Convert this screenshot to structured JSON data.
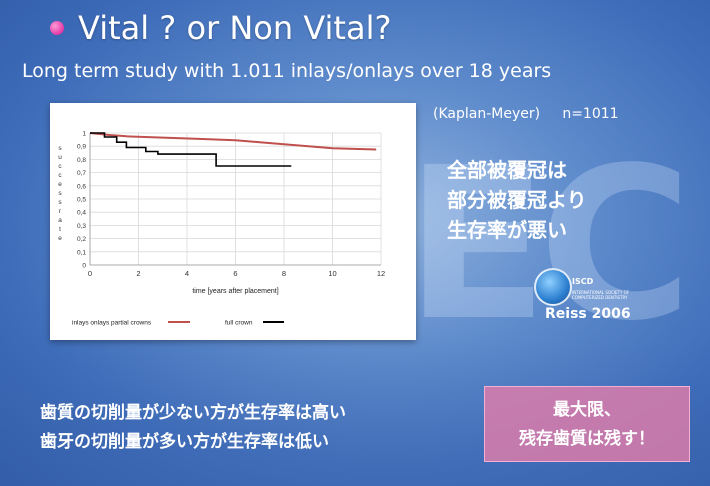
{
  "slide": {
    "title": "Vital ? or Non Vital?",
    "subtitle": "Long term study with 1.011 inlays/onlays over 18 years",
    "method": "(Kaplan-Meyer)     n=1011",
    "finding_lines": [
      "全部被覆冠は",
      "部分被覆冠より",
      "生存率が悪い"
    ],
    "logo": {
      "text": "ISCD",
      "subtitle": "INTERNATIONAL SOCIETY OF COMPUTERIZED DENTISTRY"
    },
    "citation": "Reiss 2006",
    "notes": [
      "歯質の切削量が少ない方が生存率は高い",
      "歯牙の切削量が多い方が生存率は低い"
    ],
    "callout": [
      "最大限、",
      "残存歯質は残す！"
    ]
  },
  "colors": {
    "partial": "#c0504d",
    "full": "#000000",
    "callout": "#e07dab",
    "bullet": "#e23aa6"
  },
  "chart_data": {
    "type": "line",
    "xlabel": "time  [years after placement]",
    "ylabel": "success rate",
    "xlim": [
      0,
      12
    ],
    "ylim": [
      0,
      1
    ],
    "xticks": [
      "0",
      "2",
      "4",
      "6",
      "8",
      "10",
      "12"
    ],
    "yticks": [
      "0",
      "0,1",
      "0,2",
      "0,3",
      "0,4",
      "0,5",
      "0,6",
      "0,7",
      "0,8",
      "0,9",
      "1"
    ],
    "grid": true,
    "legend_position": "bottom",
    "series": [
      {
        "name": "inlays onlays partial crowns",
        "color": "#c0504d",
        "x": [
          0,
          0.8,
          1.5,
          3,
          4.5,
          6,
          7,
          8,
          9,
          10,
          11.8
        ],
        "y": [
          1,
          0.985,
          0.975,
          0.965,
          0.955,
          0.945,
          0.93,
          0.915,
          0.9,
          0.885,
          0.875
        ]
      },
      {
        "name": "full crown",
        "color": "#000000",
        "x": [
          0,
          0.6,
          0.6,
          1.1,
          1.1,
          1.5,
          1.5,
          2.3,
          2.3,
          2.8,
          2.8,
          5.2,
          5.2,
          8.3
        ],
        "y": [
          1,
          1,
          0.97,
          0.97,
          0.93,
          0.93,
          0.89,
          0.89,
          0.86,
          0.86,
          0.84,
          0.84,
          0.75,
          0.75
        ]
      }
    ]
  }
}
